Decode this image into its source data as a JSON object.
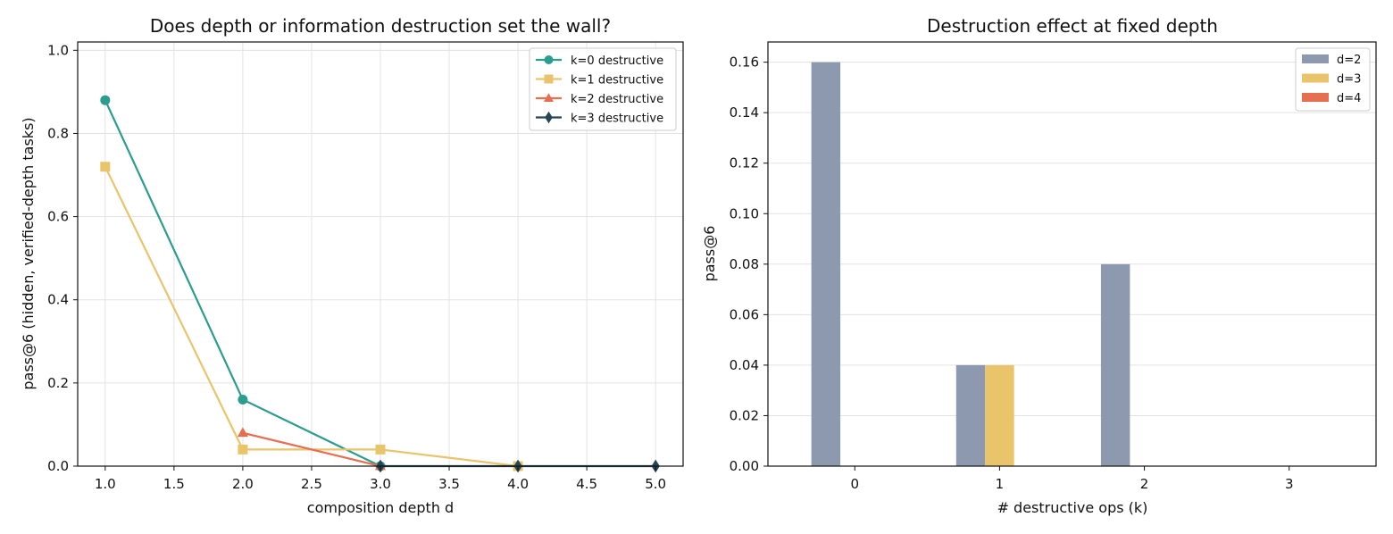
{
  "chart_data": [
    {
      "type": "line",
      "title": "Does depth or information destruction set the wall?",
      "xlabel": "composition depth d",
      "ylabel": "pass@6 (hidden, verified-depth tasks)",
      "xlim": [
        0.8,
        5.2
      ],
      "ylim": [
        0.0,
        1.02
      ],
      "xticks": [
        "1.0",
        "1.5",
        "2.0",
        "2.5",
        "3.0",
        "3.5",
        "4.0",
        "4.5",
        "5.0"
      ],
      "yticks": [
        "0.0",
        "0.2",
        "0.4",
        "0.6",
        "0.8",
        "1.0"
      ],
      "grid": true,
      "legend_position": "top-right",
      "series": [
        {
          "name": "k=0 destructive",
          "color": "#2a9d8f",
          "marker": "circle",
          "x": [
            1,
            2,
            3
          ],
          "y": [
            0.88,
            0.16,
            0.0
          ]
        },
        {
          "name": "k=1 destructive",
          "color": "#e9c46a",
          "marker": "square",
          "x": [
            1,
            2,
            3,
            4
          ],
          "y": [
            0.72,
            0.04,
            0.04,
            0.0
          ]
        },
        {
          "name": "k=2 destructive",
          "color": "#e76f51",
          "marker": "triangle",
          "x": [
            2,
            3
          ],
          "y": [
            0.08,
            0.0
          ]
        },
        {
          "name": "k=3 destructive",
          "color": "#264653",
          "marker": "diamond",
          "x": [
            3,
            4,
            5
          ],
          "y": [
            0.0,
            0.0,
            0.0
          ]
        }
      ]
    },
    {
      "type": "bar",
      "title": "Destruction effect at fixed depth",
      "xlabel": "# destructive ops (k)",
      "ylabel": "pass@6",
      "categories": [
        "0",
        "1",
        "2",
        "3"
      ],
      "ylim": [
        0.0,
        0.168
      ],
      "yticks": [
        "0.00",
        "0.02",
        "0.04",
        "0.06",
        "0.08",
        "0.10",
        "0.12",
        "0.14",
        "0.16"
      ],
      "grid": true,
      "legend_position": "top-right",
      "series": [
        {
          "name": "d=2",
          "color": "#8d99ae",
          "values": [
            0.16,
            0.04,
            0.08,
            0.0
          ]
        },
        {
          "name": "d=3",
          "color": "#e9c46a",
          "values": [
            0.0,
            0.04,
            0.0,
            0.0
          ]
        },
        {
          "name": "d=4",
          "color": "#e76f51",
          "values": [
            0.0,
            0.0,
            0.0,
            0.0
          ]
        }
      ]
    }
  ]
}
